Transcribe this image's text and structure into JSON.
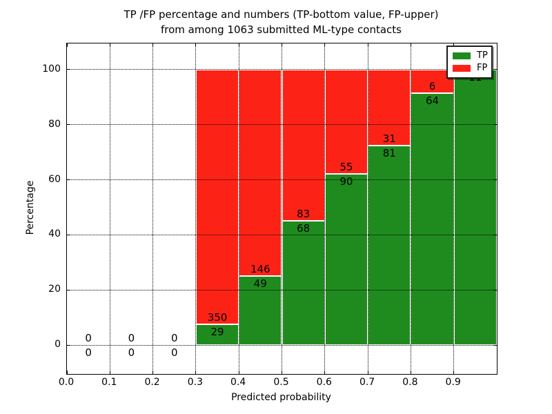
{
  "chart_data": {
    "type": "bar",
    "stacked": true,
    "title": "TP /FP percentage and numbers (TP-bottom value, FP-upper)\nfrom among 1063 submitted ML-type contacts",
    "title_lines": [
      "TP /FP percentage and numbers (TP-bottom value, FP-upper)",
      "from among 1063 submitted ML-type contacts"
    ],
    "total_contacts": 1063,
    "xlabel": "Predicted probability",
    "ylabel": "Percentage",
    "xlim": [
      0.0,
      1.0
    ],
    "ylim": [
      -10.5,
      109.5
    ],
    "x_ticks": [
      "0.0",
      "0.1",
      "0.2",
      "0.3",
      "0.4",
      "0.5",
      "0.6",
      "0.7",
      "0.8",
      "0.9"
    ],
    "y_ticks": [
      "0",
      "20",
      "40",
      "60",
      "80",
      "100"
    ],
    "grid": true,
    "grid_style": "dotted",
    "legend": {
      "position": "upper right",
      "entries": [
        {
          "label": "TP",
          "color": "#1f8b1f"
        },
        {
          "label": "FP",
          "color": "#fc2316"
        }
      ]
    },
    "bars_note": "Each bin stacked to 100%: green = TP percentage tp/(tp+fp), red = FP remainder; numeric labels show raw counts (TP below boundary, FP above boundary)",
    "bins": [
      {
        "start": 0.0,
        "end": 0.1,
        "tp": 0,
        "fp": 0
      },
      {
        "start": 0.1,
        "end": 0.2,
        "tp": 0,
        "fp": 0
      },
      {
        "start": 0.2,
        "end": 0.3,
        "tp": 0,
        "fp": 0
      },
      {
        "start": 0.3,
        "end": 0.4,
        "tp": 29,
        "fp": 350
      },
      {
        "start": 0.4,
        "end": 0.5,
        "tp": 49,
        "fp": 146
      },
      {
        "start": 0.5,
        "end": 0.6,
        "tp": 68,
        "fp": 83
      },
      {
        "start": 0.6,
        "end": 0.7,
        "tp": 90,
        "fp": 55
      },
      {
        "start": 0.7,
        "end": 0.8,
        "tp": 81,
        "fp": 31
      },
      {
        "start": 0.8,
        "end": 0.9,
        "tp": 64,
        "fp": 6
      },
      {
        "start": 0.9,
        "end": 1.0,
        "tp": 11,
        "fp": 0
      }
    ]
  }
}
